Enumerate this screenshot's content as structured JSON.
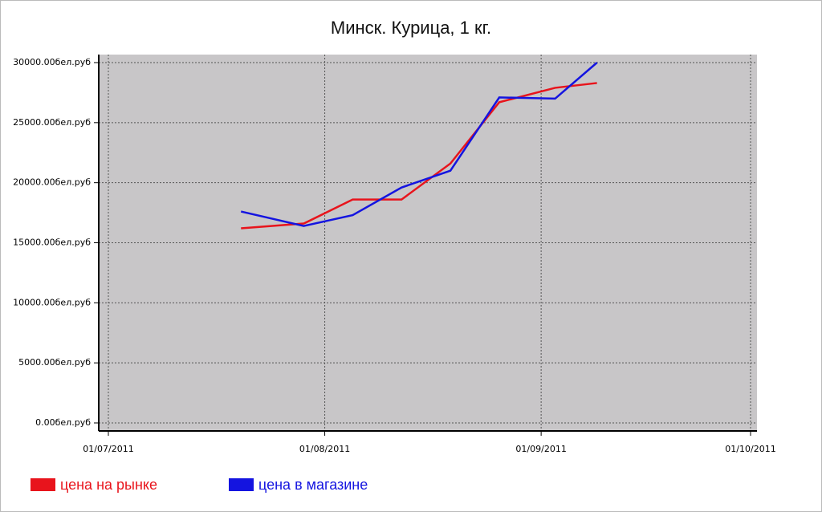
{
  "chart_data": {
    "type": "line",
    "title": "Минск. Курица, 1 кг.",
    "x": [
      "2011-07-20",
      "2011-07-29",
      "2011-08-05",
      "2011-08-12",
      "2011-08-19",
      "2011-08-26",
      "2011-09-03",
      "2011-09-09"
    ],
    "series": [
      {
        "name": "цена на рынке",
        "color": "#e8141c",
        "values": [
          16200,
          16600,
          18600,
          18600,
          21600,
          26700,
          27900,
          28300
        ]
      },
      {
        "name": "цена в магазине",
        "color": "#1414e0",
        "values": [
          17600,
          16400,
          17300,
          19600,
          21000,
          27100,
          27000,
          30000
        ]
      }
    ],
    "xlim": [
      "2011-07-01",
      "2011-10-01"
    ],
    "xticks": [
      {
        "value": "2011-07-01",
        "label": "01/07/2011"
      },
      {
        "value": "2011-08-01",
        "label": "01/08/2011"
      },
      {
        "value": "2011-09-01",
        "label": "01/09/2011"
      },
      {
        "value": "2011-10-01",
        "label": "01/10/2011"
      }
    ],
    "ylim": [
      0,
      30000
    ],
    "yticks": [
      {
        "value": 0,
        "label": "0.00бел.руб"
      },
      {
        "value": 5000,
        "label": "5000.00бел.руб"
      },
      {
        "value": 10000,
        "label": "10000.00бел.руб"
      },
      {
        "value": 15000,
        "label": "15000.00бел.руб"
      },
      {
        "value": 20000,
        "label": "20000.00бел.руб"
      },
      {
        "value": 25000,
        "label": "25000.00бел.руб"
      },
      {
        "value": 30000,
        "label": "30000.00бел.руб"
      }
    ],
    "grid": true,
    "legend": "bottom"
  }
}
